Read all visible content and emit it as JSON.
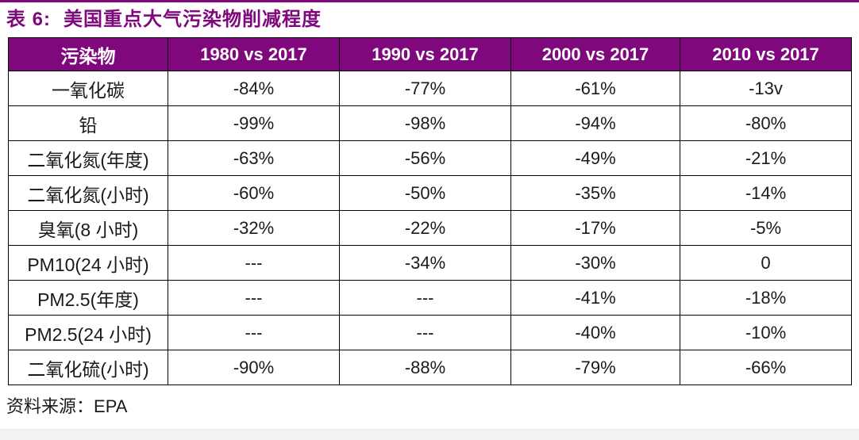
{
  "header": {
    "title_prefix": "表 6:",
    "title_text": "美国重点大气污染物削减程度"
  },
  "table": {
    "columns": [
      "污染物",
      "1980 vs 2017",
      "1990 vs 2017",
      "2000 vs 2017",
      "2010 vs 2017"
    ],
    "rows": [
      [
        "一氧化碳",
        "-84%",
        "-77%",
        "-61%",
        "-13v"
      ],
      [
        "铅",
        "-99%",
        "-98%",
        "-94%",
        "-80%"
      ],
      [
        "二氧化氮(年度)",
        "-63%",
        "-56%",
        "-49%",
        "-21%"
      ],
      [
        "二氧化氮(小时)",
        "-60%",
        "-50%",
        "-35%",
        "-14%"
      ],
      [
        "臭氧(8 小时)",
        "-32%",
        "-22%",
        "-17%",
        "-5%"
      ],
      [
        "PM10(24 小时)",
        "---",
        "-34%",
        "-30%",
        "0"
      ],
      [
        "PM2.5(年度)",
        "---",
        "---",
        "-41%",
        "-18%"
      ],
      [
        "PM2.5(24 小时)",
        "---",
        "---",
        "-40%",
        "-10%"
      ],
      [
        "二氧化硫(小时)",
        "-90%",
        "-88%",
        "-79%",
        "-66%"
      ]
    ]
  },
  "footer": {
    "source_label": "资料来源：",
    "source_value": "EPA"
  },
  "colors": {
    "accent_purple": "#80087D",
    "header_text": "#FFFFFF",
    "body_text": "#1A1A1A",
    "border": "#000000",
    "bottom_strip": "#F4F2F3"
  }
}
